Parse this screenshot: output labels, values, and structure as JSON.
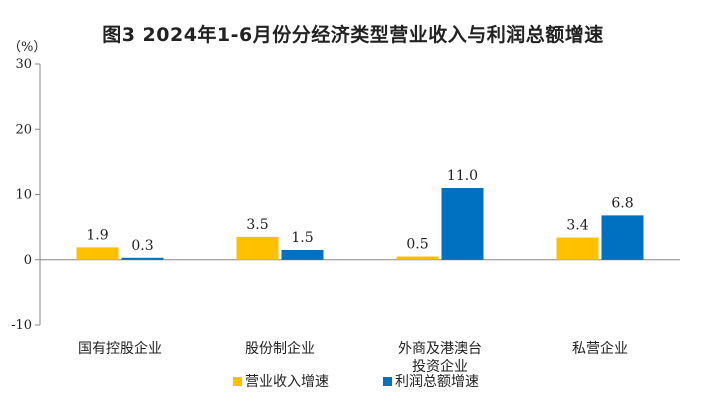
{
  "chart_data": {
    "type": "bar",
    "title": "图3  2024年1-6月份分经济类型营业收入与利润总额增速",
    "ylabel": "（%）",
    "xlabel": "",
    "ylim": [
      -10,
      30
    ],
    "yticks": [
      -10,
      0,
      10,
      20,
      30
    ],
    "grid": false,
    "legend_position": "bottom",
    "categories": [
      [
        "国有控股企业"
      ],
      [
        "股份制企业"
      ],
      [
        "外商及港澳台",
        "投资企业"
      ],
      [
        "私营企业"
      ]
    ],
    "series": [
      {
        "name": "营业收入增速",
        "color": "#FFC000",
        "values": [
          1.9,
          3.5,
          0.5,
          3.4
        ]
      },
      {
        "name": "利润总额增速",
        "color": "#0070C0",
        "values": [
          0.3,
          1.5,
          11.0,
          6.8
        ]
      }
    ]
  }
}
